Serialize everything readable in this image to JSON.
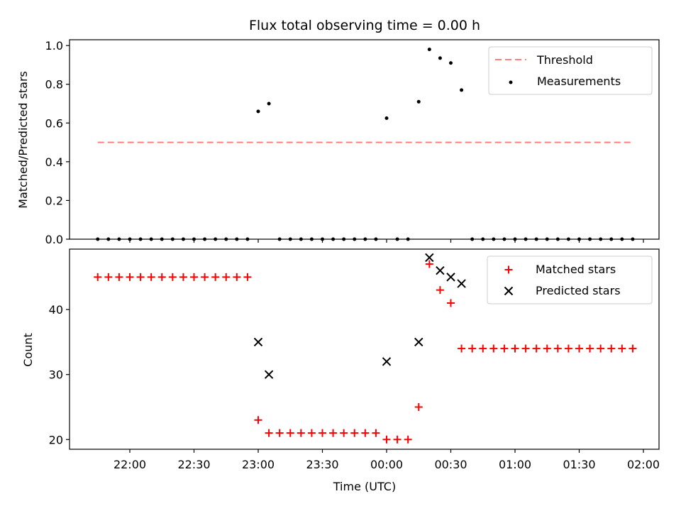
{
  "title": "Flux total observing time = 0.00 h",
  "chart_data": [
    {
      "type": "scatter",
      "ylabel": "Matched/Predicted stars",
      "ylim": [
        0,
        1.03
      ],
      "yticks": [
        0.0,
        0.2,
        0.4,
        0.6,
        0.8,
        1.0
      ],
      "ytick_labels": [
        "0.0",
        "0.2",
        "0.4",
        "0.6",
        "0.8",
        "1.0"
      ],
      "legend": {
        "position": "top-right",
        "entries": [
          "Threshold",
          "Measurements"
        ]
      },
      "threshold": {
        "name": "Threshold",
        "value": 0.5,
        "color": "#ff7f7f",
        "from": "21:45",
        "to": "01:55"
      },
      "measurements": {
        "name": "Measurements",
        "color": "#000000",
        "points": [
          [
            "21:45",
            0
          ],
          [
            "21:50",
            0
          ],
          [
            "21:55",
            0
          ],
          [
            "22:00",
            0
          ],
          [
            "22:05",
            0
          ],
          [
            "22:10",
            0
          ],
          [
            "22:15",
            0
          ],
          [
            "22:20",
            0
          ],
          [
            "22:25",
            0
          ],
          [
            "22:30",
            0
          ],
          [
            "22:35",
            0
          ],
          [
            "22:40",
            0
          ],
          [
            "22:45",
            0
          ],
          [
            "22:50",
            0
          ],
          [
            "22:55",
            0
          ],
          [
            "23:00",
            0.66
          ],
          [
            "23:05",
            0.7
          ],
          [
            "23:10",
            0
          ],
          [
            "23:15",
            0
          ],
          [
            "23:20",
            0
          ],
          [
            "23:25",
            0
          ],
          [
            "23:30",
            0
          ],
          [
            "23:35",
            0
          ],
          [
            "23:40",
            0
          ],
          [
            "23:45",
            0
          ],
          [
            "23:50",
            0
          ],
          [
            "23:55",
            0
          ],
          [
            "00:00",
            0.625
          ],
          [
            "00:05",
            0
          ],
          [
            "00:10",
            0
          ],
          [
            "00:15",
            0.71
          ],
          [
            "00:20",
            0.98
          ],
          [
            "00:25",
            0.935
          ],
          [
            "00:30",
            0.91
          ],
          [
            "00:35",
            0.77
          ],
          [
            "00:40",
            0
          ],
          [
            "00:45",
            0
          ],
          [
            "00:50",
            0
          ],
          [
            "00:55",
            0
          ],
          [
            "01:00",
            0
          ],
          [
            "01:05",
            0
          ],
          [
            "01:10",
            0
          ],
          [
            "01:15",
            0
          ],
          [
            "01:20",
            0
          ],
          [
            "01:25",
            0
          ],
          [
            "01:30",
            0
          ],
          [
            "01:35",
            0
          ],
          [
            "01:40",
            0
          ],
          [
            "01:45",
            0
          ],
          [
            "01:50",
            0
          ],
          [
            "01:55",
            0
          ]
        ]
      }
    },
    {
      "type": "scatter",
      "xlabel": "Time (UTC)",
      "ylabel": "Count",
      "ylim": [
        18.5,
        49.3
      ],
      "yticks": [
        20,
        30,
        40
      ],
      "ytick_labels": [
        "20",
        "30",
        "40"
      ],
      "xticks": [
        "22:00",
        "22:30",
        "23:00",
        "23:30",
        "00:00",
        "00:30",
        "01:00",
        "01:30",
        "02:00"
      ],
      "legend": {
        "position": "top-right",
        "entries": [
          "Matched stars",
          "Predicted stars"
        ]
      },
      "series": [
        {
          "name": "Matched stars",
          "marker": "plus",
          "color": "#ff0000",
          "points": [
            [
              "21:45",
              45
            ],
            [
              "21:50",
              45
            ],
            [
              "21:55",
              45
            ],
            [
              "22:00",
              45
            ],
            [
              "22:05",
              45
            ],
            [
              "22:10",
              45
            ],
            [
              "22:15",
              45
            ],
            [
              "22:20",
              45
            ],
            [
              "22:25",
              45
            ],
            [
              "22:30",
              45
            ],
            [
              "22:35",
              45
            ],
            [
              "22:40",
              45
            ],
            [
              "22:45",
              45
            ],
            [
              "22:50",
              45
            ],
            [
              "22:55",
              45
            ],
            [
              "23:00",
              23
            ],
            [
              "23:05",
              21
            ],
            [
              "23:10",
              21
            ],
            [
              "23:15",
              21
            ],
            [
              "23:20",
              21
            ],
            [
              "23:25",
              21
            ],
            [
              "23:30",
              21
            ],
            [
              "23:35",
              21
            ],
            [
              "23:40",
              21
            ],
            [
              "23:45",
              21
            ],
            [
              "23:50",
              21
            ],
            [
              "23:55",
              21
            ],
            [
              "00:00",
              20
            ],
            [
              "00:05",
              20
            ],
            [
              "00:10",
              20
            ],
            [
              "00:15",
              25
            ],
            [
              "00:20",
              47
            ],
            [
              "00:25",
              43
            ],
            [
              "00:30",
              41
            ],
            [
              "00:35",
              34
            ],
            [
              "00:40",
              34
            ],
            [
              "00:45",
              34
            ],
            [
              "00:50",
              34
            ],
            [
              "00:55",
              34
            ],
            [
              "01:00",
              34
            ],
            [
              "01:05",
              34
            ],
            [
              "01:10",
              34
            ],
            [
              "01:15",
              34
            ],
            [
              "01:20",
              34
            ],
            [
              "01:25",
              34
            ],
            [
              "01:30",
              34
            ],
            [
              "01:35",
              34
            ],
            [
              "01:40",
              34
            ],
            [
              "01:45",
              34
            ],
            [
              "01:50",
              34
            ],
            [
              "01:55",
              34
            ]
          ]
        },
        {
          "name": "Predicted stars",
          "marker": "x",
          "color": "#000000",
          "points": [
            [
              "23:00",
              35
            ],
            [
              "23:05",
              30
            ],
            [
              "00:00",
              32
            ],
            [
              "00:15",
              35
            ],
            [
              "00:20",
              48
            ],
            [
              "00:25",
              46
            ],
            [
              "00:30",
              45
            ],
            [
              "00:35",
              44
            ]
          ]
        }
      ]
    }
  ]
}
